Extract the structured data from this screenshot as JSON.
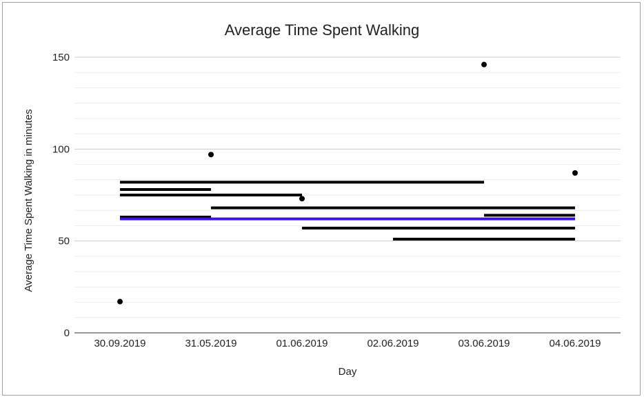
{
  "chart_data": {
    "type": "scatter",
    "title": "Average Time Spent Walking",
    "xlabel": "Day",
    "ylabel": "Average Time Spent Walking in minutes",
    "categories": [
      "30.09.2019",
      "31.05.2019",
      "01.06.2019",
      "02.06.2019",
      "03.06.2019",
      "04.06.2019"
    ],
    "ylim": [
      0,
      150
    ],
    "yticks": [
      0,
      50,
      100,
      150
    ],
    "grid": true,
    "legend": "none",
    "points": [
      {
        "x": "30.09.2019",
        "y": 17
      },
      {
        "x": "31.05.2019",
        "y": 97
      },
      {
        "x": "01.06.2019",
        "y": 73
      },
      {
        "x": "03.06.2019",
        "y": 146
      },
      {
        "x": "04.06.2019",
        "y": 87
      }
    ],
    "segments": [
      {
        "from": "30.09.2019",
        "to": "03.06.2019",
        "y": 82,
        "color": "#000000"
      },
      {
        "from": "30.09.2019",
        "to": "31.05.2019",
        "y": 78,
        "color": "#000000"
      },
      {
        "from": "30.09.2019",
        "to": "01.06.2019",
        "y": 75,
        "color": "#000000"
      },
      {
        "from": "30.09.2019",
        "to": "31.05.2019",
        "y": 63,
        "color": "#000000"
      },
      {
        "from": "31.05.2019",
        "to": "04.06.2019",
        "y": 68,
        "color": "#000000"
      },
      {
        "from": "03.06.2019",
        "to": "04.06.2019",
        "y": 64,
        "color": "#000000"
      },
      {
        "from": "01.06.2019",
        "to": "04.06.2019",
        "y": 57,
        "color": "#000000"
      },
      {
        "from": "02.06.2019",
        "to": "04.06.2019",
        "y": 51,
        "color": "#000000"
      },
      {
        "from": "30.09.2019",
        "to": "04.06.2019",
        "y": 62,
        "color": "#3d0ef2"
      }
    ]
  }
}
